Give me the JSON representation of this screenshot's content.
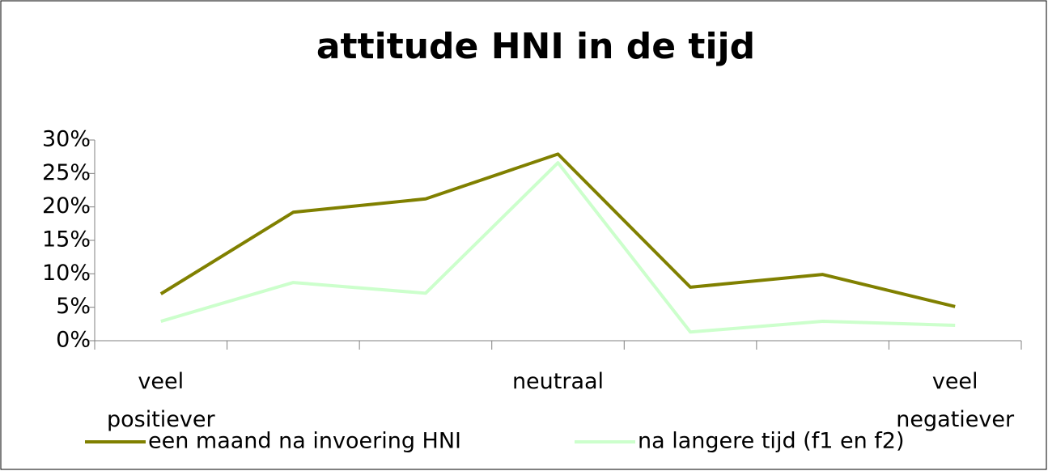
{
  "chart_data": {
    "type": "line",
    "title": "attitude HNI in de tijd",
    "categories": [
      "veel positiever",
      null,
      null,
      "neutraal",
      null,
      null,
      "veel negatiever"
    ],
    "series": [
      {
        "name": "een maand na invoering HNI",
        "color": "#808000",
        "values": [
          7.0,
          19.2,
          21.2,
          27.9,
          8.0,
          9.9,
          5.1
        ]
      },
      {
        "name": "na langere tijd (f1 en f2)",
        "color": "#ccffcc",
        "values": [
          2.9,
          8.7,
          7.1,
          26.6,
          1.3,
          2.9,
          2.3
        ]
      }
    ],
    "ylim": [
      0,
      30
    ],
    "yticks": [
      {
        "value": 0,
        "label": "0%"
      },
      {
        "value": 5,
        "label": "5%"
      },
      {
        "value": 10,
        "label": "10%"
      },
      {
        "value": 15,
        "label": "15%"
      },
      {
        "value": 20,
        "label": "20%"
      },
      {
        "value": 25,
        "label": "25%"
      },
      {
        "value": 30,
        "label": "30%"
      }
    ],
    "grid": false,
    "legend": "bottom"
  }
}
